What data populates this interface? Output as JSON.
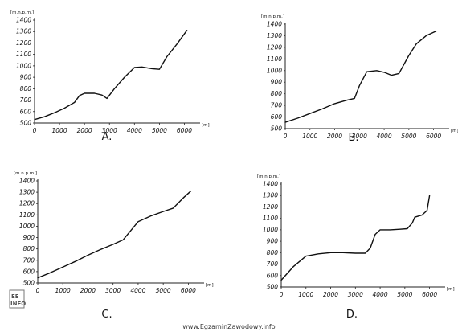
{
  "watermark": "www.EgzaminZawodowy.info",
  "logo": {
    "line1": "EE",
    "line2": "INFO"
  },
  "chart_data": [
    {
      "type": "line",
      "panel_label": "A.",
      "ylabel": "[m.n.p.m.]",
      "xlabel": "[m]",
      "xlim": [
        0,
        6500
      ],
      "ylim": [
        500,
        1400
      ],
      "y_ticks": [
        500,
        600,
        700,
        800,
        900,
        1000,
        1100,
        1200,
        1300,
        1400
      ],
      "x_ticks": [
        0,
        1000,
        2000,
        3000,
        4000,
        5000,
        6000
      ],
      "y_tick_labels": [
        "500",
        "600",
        "700",
        "800",
        "900",
        "1000",
        "1100",
        "1200",
        "1300",
        "1400"
      ],
      "x_tick_labels": [
        "0",
        "1000",
        "2000",
        "3000",
        "4000",
        "5000",
        "6000"
      ],
      "series": [
        {
          "x": [
            0,
            400,
            800,
            1200,
            1600,
            1800,
            2000,
            2400,
            2700,
            2900,
            3200,
            3600,
            4000,
            4300,
            4700,
            5000,
            5300,
            5700,
            6100
          ],
          "y": [
            530,
            555,
            590,
            630,
            680,
            740,
            760,
            760,
            745,
            715,
            800,
            900,
            985,
            990,
            975,
            970,
            1080,
            1190,
            1310
          ]
        }
      ]
    },
    {
      "type": "line",
      "panel_label": "B.",
      "ylabel": "[m.n.p.m.]",
      "xlabel": "[m]",
      "xlim": [
        0,
        6500
      ],
      "ylim": [
        500,
        1400
      ],
      "y_ticks": [
        500,
        600,
        700,
        800,
        900,
        1000,
        1100,
        1200,
        1300,
        1400
      ],
      "x_ticks": [
        0,
        1000,
        2000,
        3000,
        4000,
        5000,
        6000
      ],
      "y_tick_labels": [
        "500",
        "600",
        "700",
        "800",
        "900",
        "1000",
        "1100",
        "1200",
        "1300",
        "1400"
      ],
      "x_tick_labels": [
        "0",
        "1000",
        "2000",
        "3000",
        "4000",
        "5000",
        "6000"
      ],
      "series": [
        {
          "x": [
            0,
            500,
            1000,
            1500,
            2000,
            2500,
            2800,
            3000,
            3300,
            3700,
            4000,
            4300,
            4600,
            5000,
            5300,
            5700,
            6100
          ],
          "y": [
            555,
            590,
            630,
            670,
            715,
            745,
            760,
            870,
            990,
            1000,
            985,
            960,
            975,
            1130,
            1230,
            1300,
            1340
          ]
        }
      ]
    },
    {
      "type": "line",
      "panel_label": "C.",
      "ylabel": "[m.n.p.m.]",
      "xlabel": "[m]",
      "xlim": [
        0,
        6500
      ],
      "ylim": [
        500,
        1400
      ],
      "y_ticks": [
        500,
        600,
        700,
        800,
        900,
        1000,
        1100,
        1200,
        1300,
        1400
      ],
      "x_ticks": [
        0,
        1000,
        2000,
        3000,
        4000,
        5000,
        6000
      ],
      "y_tick_labels": [
        "500",
        "600",
        "700",
        "800",
        "900",
        "1000",
        "1100",
        "1200",
        "1300",
        "1400"
      ],
      "x_tick_labels": [
        "0",
        "1000",
        "2000",
        "3000",
        "4000",
        "5000",
        "6000"
      ],
      "series": [
        {
          "x": [
            0,
            500,
            1000,
            1500,
            2000,
            2500,
            3000,
            3400,
            3700,
            4000,
            4500,
            5000,
            5400,
            5800,
            6100
          ],
          "y": [
            545,
            590,
            640,
            690,
            745,
            795,
            840,
            880,
            960,
            1040,
            1090,
            1130,
            1160,
            1250,
            1310
          ]
        }
      ]
    },
    {
      "type": "line",
      "panel_label": "D.",
      "ylabel": "[m.n.p.m.]",
      "xlabel": "[m]",
      "xlim": [
        0,
        6500
      ],
      "ylim": [
        500,
        1400
      ],
      "y_ticks": [
        500,
        600,
        700,
        800,
        900,
        1000,
        1100,
        1200,
        1300,
        1400
      ],
      "x_ticks": [
        0,
        1000,
        2000,
        3000,
        4000,
        5000,
        6000
      ],
      "y_tick_labels": [
        "500",
        "600",
        "700",
        "800",
        "900",
        "1000",
        "1100",
        "1200",
        "1300",
        "1400"
      ],
      "x_tick_labels": [
        "0",
        "1000",
        "2000",
        "3000",
        "4000",
        "5000",
        "6000"
      ],
      "series": [
        {
          "x": [
            0,
            500,
            1000,
            1500,
            2000,
            2500,
            3000,
            3400,
            3600,
            3800,
            4000,
            4400,
            4800,
            5100,
            5300,
            5400,
            5700,
            5900,
            6000
          ],
          "y": [
            560,
            680,
            770,
            790,
            800,
            800,
            795,
            795,
            840,
            960,
            1000,
            1000,
            1005,
            1010,
            1060,
            1110,
            1130,
            1170,
            1300
          ]
        }
      ]
    }
  ]
}
